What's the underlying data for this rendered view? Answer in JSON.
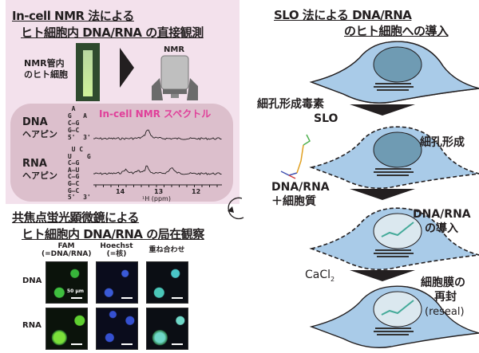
{
  "nmr_panel": {
    "title_line1": "In-cell NMR 法による",
    "title_line2": "ヒト細胞内 DNA/RNA の直接観測",
    "tube_label": "NMR管内\nのヒト細胞",
    "nmr_label": "NMR",
    "spectrum_title": "In-cell NMR スペクトル",
    "dna_label": "DNA",
    "dna_sub": "ヘアピン",
    "rna_label": "RNA",
    "rna_sub": "ヘアピン",
    "dna_hairpin": "  A\n G   A\n C–G\n G–C\n 5'  3'",
    "rna_hairpin": "  U C\n U    G\n C–G\n A–U\n C–G\n G–C\n G–C\n 5'  3'",
    "axis_ticks": [
      "14",
      "13",
      "12"
    ],
    "axis_label": "¹H (ppm)",
    "spectrum_color": "#e0409a"
  },
  "microscopy_panel": {
    "title_line1": "共焦点蛍光顕微鏡による",
    "title_line2": "ヒト細胞内 DNA/RNA の局在観察",
    "columns": [
      {
        "line1": "FAM",
        "line2": "(=DNA/RNA)"
      },
      {
        "line1": "Hoechst",
        "line2": "(=核)"
      },
      {
        "line1": "重ね合わせ",
        "line2": ""
      }
    ],
    "rows": [
      "DNA",
      "RNA"
    ],
    "scale_bar": "50 µm"
  },
  "slo_panel": {
    "title_line1": "SLO 法による DNA/RNA",
    "title_line2": "のヒト細胞への導入",
    "step1_line1": "細孔形成毒素",
    "step1_line2": "SLO",
    "state2": "細孔形成",
    "step2_line1": "DNA/RNA",
    "step2_line2": "＋細胞質",
    "state3_line1": "DNA/RNA",
    "state3_line2": "の導入",
    "step3": "CaCl",
    "step3_sub": "2",
    "state4_line1": "細胞膜の",
    "state4_line2": "再封",
    "state4_line3": "(reseal)",
    "cell_color": "#a9cbe8",
    "nucleus_color": "#6f9bb3"
  }
}
